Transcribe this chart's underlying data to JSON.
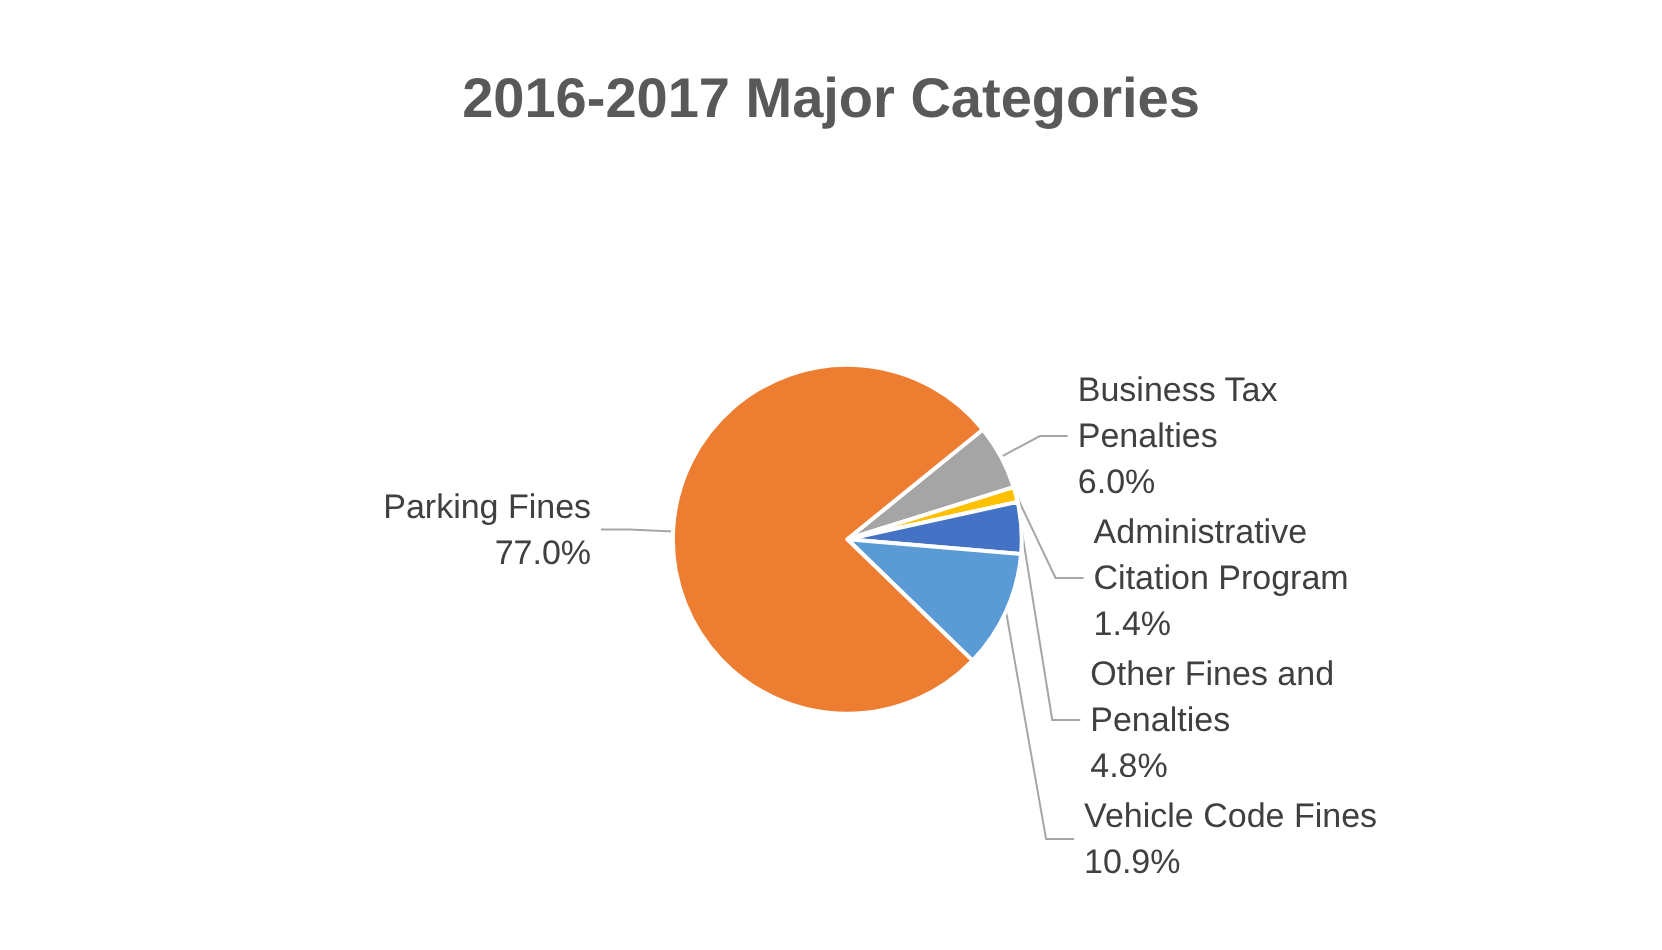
{
  "chart_data": {
    "type": "pie",
    "title": "2016-2017 Major Categories",
    "categories": [
      "Business Tax Penalties",
      "Administrative Citation Program",
      "Other Fines and Penalties",
      "Vehicle Code Fines",
      "Parking Fines"
    ],
    "values": [
      6.0,
      1.4,
      4.8,
      10.9,
      77.0
    ],
    "value_labels": [
      "6.0%",
      "1.4%",
      "4.8%",
      "10.9%",
      "77.0%"
    ],
    "colors": [
      "#a5a5a5",
      "#ffc000",
      "#4472c4",
      "#5b9bd5",
      "#ed7d31"
    ],
    "legend": false
  }
}
